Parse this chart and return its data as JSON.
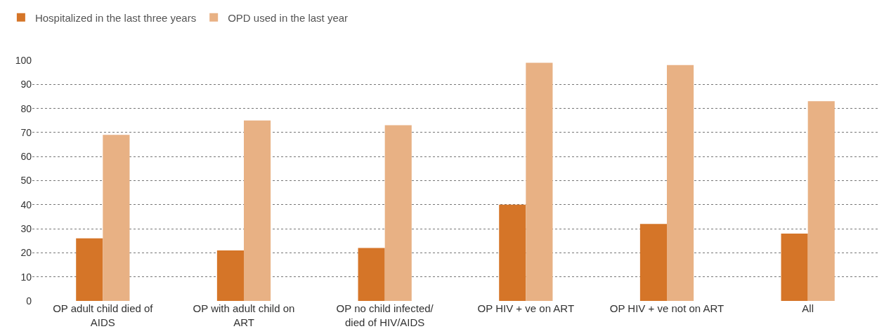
{
  "chart_data": {
    "type": "bar",
    "categories": [
      "OP adult child died of AIDS",
      "OP with adult child on ART",
      "OP no child infected/ died of HIV/AIDS",
      "OP HIV + ve on ART",
      "OP HIV + ve not on ART",
      "All"
    ],
    "series": [
      {
        "name": "Hospitalized in the last three years",
        "color": "#d57528",
        "values": [
          26,
          21,
          22,
          40,
          32,
          28
        ]
      },
      {
        "name": "OPD used in the last year",
        "color": "#e8b184",
        "values": [
          69,
          75,
          73,
          99,
          98,
          83
        ]
      }
    ],
    "ylim": [
      0,
      100
    ],
    "yticks": [
      0,
      10,
      20,
      30,
      40,
      50,
      60,
      70,
      80,
      90,
      100
    ],
    "grid": "y",
    "legend": "top left"
  }
}
